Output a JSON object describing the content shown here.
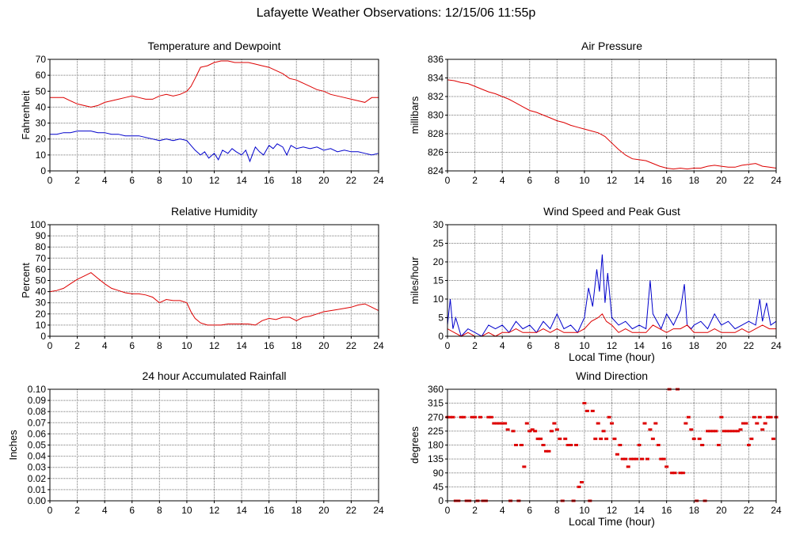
{
  "title": "Lafayette Weather Observations: 12/15/06 11:55p",
  "colors": {
    "red": "#dd0000",
    "blue": "#0000cc",
    "grid": "#777777",
    "background": "#ffffff"
  },
  "chart_data": [
    {
      "id": "temp",
      "type": "line",
      "title": "Temperature and Dewpoint",
      "xlabel": "",
      "ylabel": "Fahrenheit",
      "xlim": [
        0,
        24
      ],
      "ylim": [
        0,
        70
      ],
      "xticks": [
        0,
        2,
        4,
        6,
        8,
        10,
        12,
        14,
        16,
        18,
        20,
        22,
        24
      ],
      "yticks": [
        0,
        10,
        20,
        30,
        40,
        50,
        60,
        70
      ],
      "grid": true,
      "series": [
        {
          "color": "#dd0000",
          "x": [
            0,
            0.5,
            1,
            1.5,
            2,
            2.5,
            3,
            3.5,
            4,
            4.5,
            5,
            5.5,
            6,
            6.5,
            7,
            7.5,
            8,
            8.5,
            9,
            9.5,
            10,
            10.3,
            10.6,
            11,
            11.5,
            12,
            12.5,
            13,
            13.5,
            14,
            14.5,
            15,
            15.5,
            16,
            16.5,
            17,
            17.5,
            18,
            18.5,
            19,
            19.5,
            20,
            20.5,
            21,
            21.5,
            22,
            22.5,
            23,
            23.5,
            24
          ],
          "y": [
            46,
            46,
            46,
            44,
            42,
            41,
            40,
            41,
            43,
            44,
            45,
            46,
            47,
            46,
            45,
            45,
            47,
            48,
            47,
            48,
            50,
            53,
            58,
            65,
            66,
            68,
            69,
            69,
            68,
            68,
            68,
            67,
            66,
            65,
            63,
            61,
            58,
            57,
            55,
            53,
            51,
            50,
            48,
            47,
            46,
            45,
            44,
            43,
            46,
            46
          ]
        },
        {
          "color": "#0000cc",
          "x": [
            0,
            0.5,
            1,
            1.5,
            2,
            2.5,
            3,
            3.5,
            4,
            4.5,
            5,
            5.5,
            6,
            6.5,
            7,
            7.5,
            8,
            8.5,
            9,
            9.5,
            10,
            10.3,
            10.6,
            11,
            11.3,
            11.6,
            12,
            12.3,
            12.6,
            13,
            13.3,
            13.6,
            14,
            14.3,
            14.6,
            15,
            15.3,
            15.6,
            16,
            16.3,
            16.6,
            17,
            17.3,
            17.6,
            18,
            18.5,
            19,
            19.5,
            20,
            20.5,
            21,
            21.5,
            22,
            22.5,
            23,
            23.5,
            24
          ],
          "y": [
            23,
            23,
            24,
            24,
            25,
            25,
            25,
            24,
            24,
            23,
            23,
            22,
            22,
            22,
            21,
            20,
            19,
            20,
            19,
            20,
            19,
            16,
            13,
            10,
            12,
            8,
            11,
            7,
            13,
            11,
            14,
            12,
            10,
            13,
            6,
            15,
            12,
            10,
            16,
            14,
            17,
            15,
            10,
            16,
            14,
            15,
            14,
            15,
            13,
            14,
            12,
            13,
            12,
            12,
            11,
            10,
            11
          ]
        }
      ]
    },
    {
      "id": "pressure",
      "type": "line",
      "title": "Air Pressure",
      "xlabel": "",
      "ylabel": "millibars",
      "xlim": [
        0,
        24
      ],
      "ylim": [
        824,
        836
      ],
      "xticks": [
        0,
        2,
        4,
        6,
        8,
        10,
        12,
        14,
        16,
        18,
        20,
        22,
        24
      ],
      "yticks": [
        824,
        826,
        828,
        830,
        832,
        834,
        836
      ],
      "grid": true,
      "series": [
        {
          "color": "#dd0000",
          "x": [
            0,
            0.5,
            1,
            1.5,
            2,
            2.5,
            3,
            3.5,
            4,
            4.5,
            5,
            5.5,
            6,
            6.5,
            7,
            7.5,
            8,
            8.5,
            9,
            9.5,
            10,
            10.5,
            11,
            11.5,
            12,
            12.5,
            13,
            13.5,
            14,
            14.5,
            15,
            15.5,
            16,
            16.5,
            17,
            17.5,
            18,
            18.5,
            19,
            19.5,
            20,
            20.5,
            21,
            21.5,
            22,
            22.5,
            23,
            23.5,
            24
          ],
          "y": [
            833.8,
            833.7,
            833.5,
            833.4,
            833.1,
            832.8,
            832.5,
            832.3,
            832.0,
            831.7,
            831.3,
            830.9,
            830.5,
            830.3,
            830.0,
            829.7,
            829.4,
            829.2,
            828.9,
            828.7,
            828.5,
            828.3,
            828.1,
            827.7,
            827.0,
            826.3,
            825.7,
            825.3,
            825.2,
            825.1,
            824.8,
            824.5,
            824.3,
            824.2,
            824.3,
            824.2,
            824.3,
            824.3,
            824.5,
            824.6,
            824.5,
            824.4,
            824.4,
            824.6,
            824.7,
            824.8,
            824.5,
            824.4,
            824.3
          ]
        }
      ]
    },
    {
      "id": "humidity",
      "type": "line",
      "title": "Relative Humidity",
      "xlabel": "",
      "ylabel": "Percent",
      "xlim": [
        0,
        24
      ],
      "ylim": [
        0,
        100
      ],
      "xticks": [
        0,
        2,
        4,
        6,
        8,
        10,
        12,
        14,
        16,
        18,
        20,
        22,
        24
      ],
      "yticks": [
        0,
        10,
        20,
        30,
        40,
        50,
        60,
        70,
        80,
        90,
        100
      ],
      "grid": true,
      "series": [
        {
          "color": "#dd0000",
          "x": [
            0,
            0.5,
            1,
            1.5,
            2,
            2.5,
            3,
            3.5,
            4,
            4.5,
            5,
            5.5,
            6,
            6.5,
            7,
            7.5,
            8,
            8.5,
            9,
            9.5,
            10,
            10.3,
            10.6,
            11,
            11.5,
            12,
            12.5,
            13,
            13.5,
            14,
            14.5,
            15,
            15.5,
            16,
            16.5,
            17,
            17.5,
            18,
            18.5,
            19,
            19.5,
            20,
            20.5,
            21,
            21.5,
            22,
            22.5,
            23,
            23.5,
            24
          ],
          "y": [
            40,
            41,
            43,
            47,
            51,
            54,
            57,
            52,
            47,
            43,
            41,
            39,
            38,
            38,
            37,
            35,
            30,
            33,
            32,
            32,
            30,
            22,
            16,
            12,
            10,
            10,
            10,
            11,
            11,
            11,
            11,
            10,
            14,
            16,
            15,
            17,
            17,
            14,
            17,
            18,
            20,
            22,
            23,
            24,
            25,
            26,
            28,
            29,
            26,
            23
          ]
        }
      ]
    },
    {
      "id": "wind",
      "type": "line",
      "title": "Wind Speed and Peak Gust",
      "xlabel": "Local Time (hour)",
      "ylabel": "miles/hour",
      "xlim": [
        0,
        24
      ],
      "ylim": [
        0,
        30
      ],
      "xticks": [
        0,
        2,
        4,
        6,
        8,
        10,
        12,
        14,
        16,
        18,
        20,
        22,
        24
      ],
      "yticks": [
        0,
        5,
        10,
        15,
        20,
        25,
        30
      ],
      "grid": true,
      "series": [
        {
          "color": "#0000cc",
          "x": [
            0,
            0.2,
            0.4,
            0.6,
            1,
            1.5,
            2,
            2.5,
            3,
            3.5,
            4,
            4.5,
            5,
            5.5,
            6,
            6.5,
            7,
            7.5,
            8,
            8.5,
            9,
            9.5,
            10,
            10.3,
            10.6,
            10.9,
            11.1,
            11.3,
            11.5,
            11.7,
            12,
            12.5,
            13,
            13.5,
            14,
            14.5,
            14.8,
            15,
            15.3,
            15.6,
            16,
            16.5,
            17,
            17.3,
            17.5,
            17.8,
            18,
            18.5,
            19,
            19.5,
            20,
            20.5,
            21,
            21.5,
            22,
            22.5,
            22.8,
            23,
            23.3,
            23.6,
            24
          ],
          "y": [
            3,
            10,
            2,
            5,
            0,
            2,
            1,
            0,
            3,
            2,
            3,
            1,
            4,
            2,
            3,
            1,
            4,
            2,
            6,
            2,
            3,
            1,
            5,
            13,
            8,
            18,
            12,
            22,
            9,
            17,
            5,
            3,
            4,
            2,
            3,
            2,
            15,
            6,
            4,
            2,
            6,
            3,
            7,
            14,
            3,
            2,
            3,
            4,
            2,
            6,
            3,
            4,
            2,
            3,
            4,
            3,
            10,
            4,
            9,
            3,
            4
          ]
        },
        {
          "color": "#dd0000",
          "x": [
            0,
            0.5,
            1,
            1.5,
            2,
            2.5,
            3,
            3.5,
            4,
            4.5,
            5,
            5.5,
            6,
            6.5,
            7,
            7.5,
            8,
            8.5,
            9,
            9.5,
            10,
            10.5,
            11,
            11.3,
            11.6,
            12,
            12.5,
            13,
            13.5,
            14,
            14.5,
            15,
            15.5,
            16,
            16.5,
            17,
            17.5,
            18,
            18.5,
            19,
            19.5,
            20,
            20.5,
            21,
            21.5,
            22,
            22.5,
            23,
            23.5,
            24
          ],
          "y": [
            2,
            1,
            0,
            1,
            0,
            0,
            1,
            0,
            1,
            1,
            2,
            1,
            1,
            1,
            2,
            1,
            2,
            1,
            1,
            1,
            2,
            4,
            5,
            6,
            4,
            3,
            1,
            2,
            1,
            1,
            1,
            3,
            2,
            1,
            2,
            2,
            3,
            1,
            1,
            1,
            2,
            1,
            1,
            1,
            2,
            1,
            2,
            3,
            2,
            2
          ]
        }
      ]
    },
    {
      "id": "rain",
      "type": "line",
      "title": "24 hour Accumulated Rainfall",
      "xlabel": "",
      "ylabel": "Inches",
      "xlim": [
        0,
        24
      ],
      "ylim": [
        0,
        0.1
      ],
      "xticks": [
        0,
        2,
        4,
        6,
        8,
        10,
        12,
        14,
        16,
        18,
        20,
        22,
        24
      ],
      "yticks": [
        "0.00",
        "0.01",
        "0.02",
        "0.03",
        "0.04",
        "0.05",
        "0.06",
        "0.07",
        "0.08",
        "0.09",
        "0.10"
      ],
      "grid": true,
      "series": [
        {
          "color": "#dd0000",
          "x": [
            0,
            24
          ],
          "y": [
            0,
            0
          ]
        }
      ]
    },
    {
      "id": "direction",
      "type": "scatter",
      "title": "Wind Direction",
      "xlabel": "Local Time (hour)",
      "ylabel": "degrees",
      "xlim": [
        0,
        24
      ],
      "ylim": [
        0,
        360
      ],
      "xticks": [
        0,
        2,
        4,
        6,
        8,
        10,
        12,
        14,
        16,
        18,
        20,
        22,
        24
      ],
      "yticks": [
        0,
        45,
        90,
        135,
        180,
        225,
        270,
        315,
        360
      ],
      "grid": true,
      "series": [
        {
          "color": "#dd0000",
          "x": [
            0,
            0.2,
            0.4,
            0.6,
            0.8,
            1.0,
            1.2,
            1.4,
            1.6,
            1.8,
            2.0,
            2.2,
            2.4,
            2.6,
            2.8,
            3.0,
            3.2,
            3.4,
            3.6,
            3.8,
            4.0,
            4.2,
            4.4,
            4.6,
            4.8,
            5.0,
            5.2,
            5.4,
            5.6,
            5.8,
            6.0,
            6.2,
            6.4,
            6.6,
            6.8,
            7.0,
            7.2,
            7.4,
            7.6,
            7.8,
            8.0,
            8.2,
            8.4,
            8.6,
            8.8,
            9.0,
            9.2,
            9.4,
            9.6,
            9.8,
            10.0,
            10.2,
            10.4,
            10.6,
            10.8,
            11.0,
            11.2,
            11.4,
            11.6,
            11.8,
            12.0,
            12.2,
            12.4,
            12.6,
            12.8,
            13.0,
            13.2,
            13.4,
            13.6,
            13.8,
            14.0,
            14.2,
            14.4,
            14.6,
            14.8,
            15.0,
            15.2,
            15.4,
            15.6,
            15.8,
            16.0,
            16.2,
            16.4,
            16.6,
            16.8,
            17.0,
            17.2,
            17.4,
            17.6,
            17.8,
            18.0,
            18.2,
            18.4,
            18.6,
            18.8,
            19.0,
            19.2,
            19.4,
            19.6,
            19.8,
            20.0,
            20.2,
            20.4,
            20.6,
            20.8,
            21.0,
            21.2,
            21.4,
            21.6,
            21.8,
            22.0,
            22.2,
            22.4,
            22.6,
            22.8,
            23.0,
            23.2,
            23.4,
            23.6,
            23.8,
            24.0
          ],
          "y": [
            270,
            270,
            270,
            0,
            0,
            270,
            270,
            0,
            0,
            270,
            270,
            0,
            270,
            0,
            0,
            270,
            270,
            250,
            250,
            250,
            250,
            250,
            230,
            0,
            225,
            180,
            0,
            180,
            110,
            250,
            225,
            230,
            225,
            200,
            200,
            180,
            160,
            160,
            225,
            250,
            230,
            200,
            0,
            200,
            180,
            180,
            0,
            180,
            45,
            60,
            315,
            290,
            0,
            290,
            200,
            250,
            200,
            225,
            200,
            270,
            250,
            200,
            150,
            180,
            135,
            135,
            110,
            135,
            135,
            135,
            180,
            135,
            250,
            135,
            230,
            200,
            250,
            180,
            135,
            135,
            110,
            360,
            90,
            90,
            360,
            90,
            90,
            250,
            270,
            230,
            200,
            0,
            200,
            180,
            0,
            225,
            225,
            225,
            225,
            180,
            270,
            225,
            225,
            225,
            225,
            225,
            225,
            230,
            250,
            250,
            180,
            200,
            270,
            250,
            270,
            230,
            250,
            270,
            270,
            200,
            270
          ]
        }
      ]
    }
  ]
}
